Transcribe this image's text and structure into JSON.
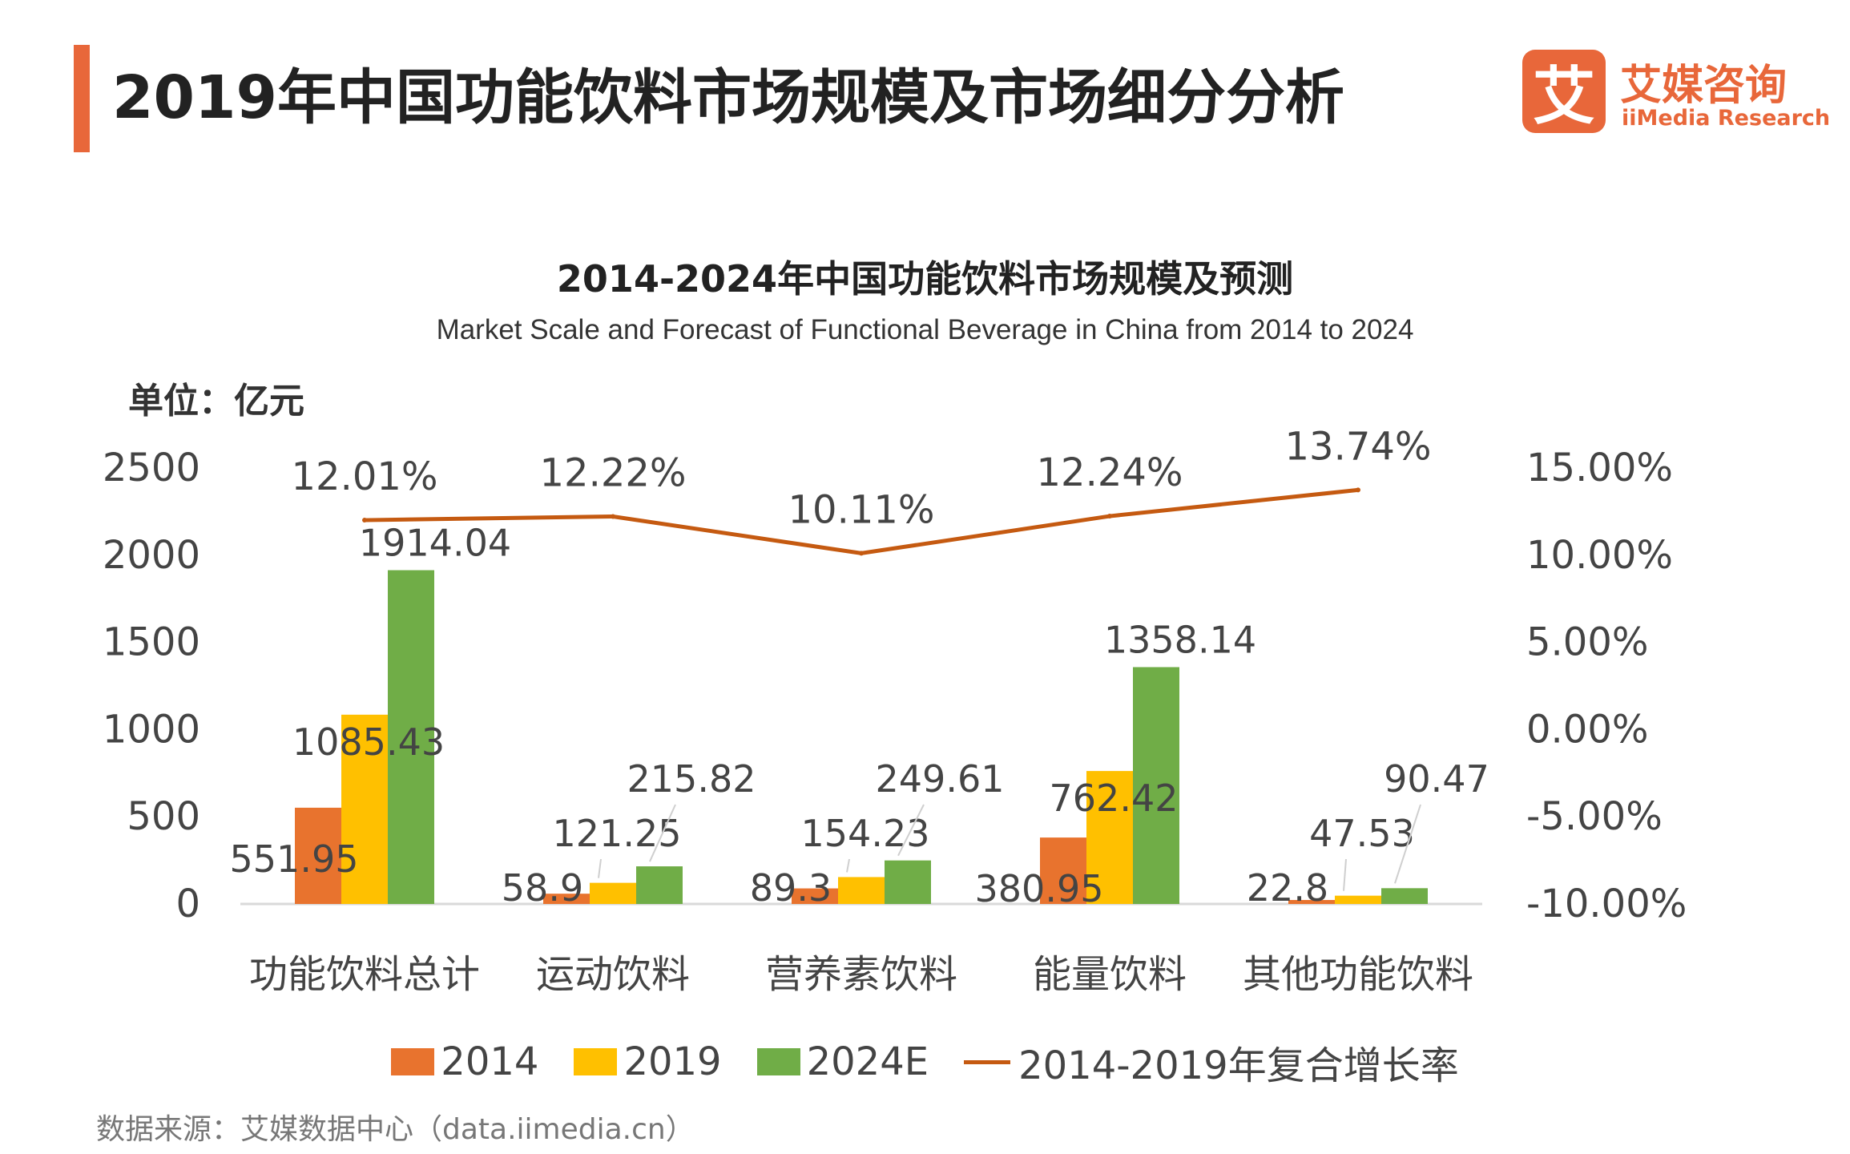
{
  "header": {
    "title": "2019年中国功能饮料市场规模及市场细分分析",
    "logo_mark": "艾",
    "logo_cn": "艾媒咨询",
    "logo_en": "iiMedia Research",
    "accent": "#e8673a"
  },
  "chart_data": {
    "type": "bar",
    "title": "2014-2024年中国功能饮料市场规模及预测",
    "subtitle": "Market Scale and Forecast of Functional Beverage in China from 2014 to 2024",
    "unit": "单位：亿元",
    "categories": [
      "功能饮料总计",
      "运动饮料",
      "营养素饮料",
      "能量饮料",
      "其他功能饮料"
    ],
    "series": [
      {
        "name": "2014",
        "color": "#e8732e",
        "values": [
          551.95,
          58.9,
          89.3,
          380.95,
          22.8
        ],
        "labels": [
          "551.95",
          "58.9",
          "89.3",
          "380.95",
          "22.8"
        ]
      },
      {
        "name": "2019",
        "color": "#ffc000",
        "values": [
          1085.43,
          121.25,
          154.23,
          762.42,
          47.53
        ],
        "labels": [
          "1085.43",
          "121.25",
          "154.23",
          "762.42",
          "47.53"
        ]
      },
      {
        "name": "2024E",
        "color": "#70ad47",
        "values": [
          1914.04,
          215.82,
          249.61,
          1358.14,
          90.47
        ],
        "labels": [
          "1914.04",
          "215.82",
          "249.61",
          "1358.14",
          "90.47"
        ]
      }
    ],
    "line": {
      "name": "2014-2019年复合增长率",
      "color": "#c55a11",
      "values": [
        12.01,
        12.22,
        10.11,
        12.24,
        13.74
      ],
      "labels": [
        "12.01%",
        "12.22%",
        "10.11%",
        "12.24%",
        "13.74%"
      ]
    },
    "ylim_left": [
      0,
      2500
    ],
    "yticks_left": [
      "0",
      "500",
      "1000",
      "1500",
      "2000",
      "2500"
    ],
    "ylim_right": [
      -10,
      15
    ],
    "yticks_right": [
      "-10.00%",
      "-5.00%",
      "0.00%",
      "5.00%",
      "10.00%",
      "15.00%"
    ],
    "grid": false,
    "legend_position": "bottom"
  },
  "footer": {
    "source": "数据来源：艾媒数据中心（data.iimedia.cn）"
  }
}
